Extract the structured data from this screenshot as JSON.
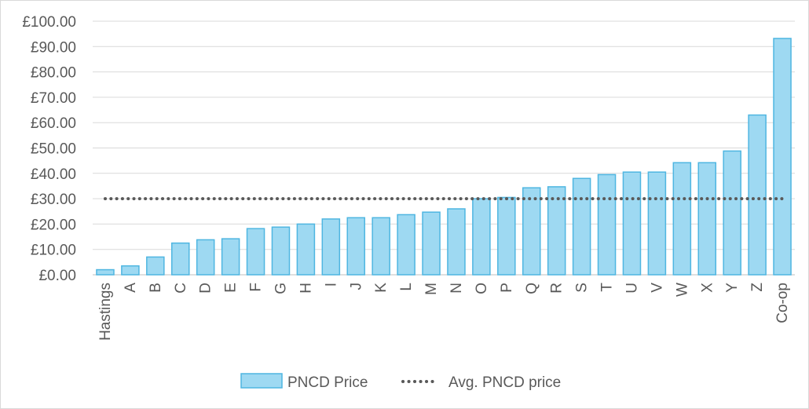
{
  "chart_data": {
    "type": "bar",
    "categories": [
      "Hastings",
      "A",
      "B",
      "C",
      "D",
      "E",
      "F",
      "G",
      "H",
      "I",
      "J",
      "K",
      "L",
      "M",
      "N",
      "O",
      "P",
      "Q",
      "R",
      "S",
      "T",
      "U",
      "V",
      "W",
      "X",
      "Y",
      "Z",
      "Co-op"
    ],
    "series": [
      {
        "name": "PNCD Price",
        "type": "bar",
        "color": "#9ED9F2",
        "border_color": "#4FB6E1",
        "values": [
          2.0,
          3.5,
          7.0,
          12.5,
          13.8,
          14.2,
          18.2,
          18.8,
          20.0,
          22.0,
          22.5,
          22.5,
          23.7,
          24.7,
          26.0,
          30.0,
          30.5,
          34.3,
          34.7,
          38.0,
          39.5,
          40.5,
          40.5,
          44.2,
          44.2,
          48.8,
          63.0,
          93.2
        ]
      },
      {
        "name": "Avg. PNCD price",
        "type": "line",
        "style": "dotted",
        "color": "#595959",
        "value": 30.0
      }
    ],
    "title": "",
    "xlabel": "",
    "ylabel": "",
    "ylim": [
      0,
      100
    ],
    "y_tick_step": 10,
    "y_tick_labels": [
      "£0.00",
      "£10.00",
      "£20.00",
      "£30.00",
      "£40.00",
      "£50.00",
      "£60.00",
      "£70.00",
      "£80.00",
      "£90.00",
      "£100.00"
    ],
    "grid": true,
    "legend_position": "bottom"
  }
}
